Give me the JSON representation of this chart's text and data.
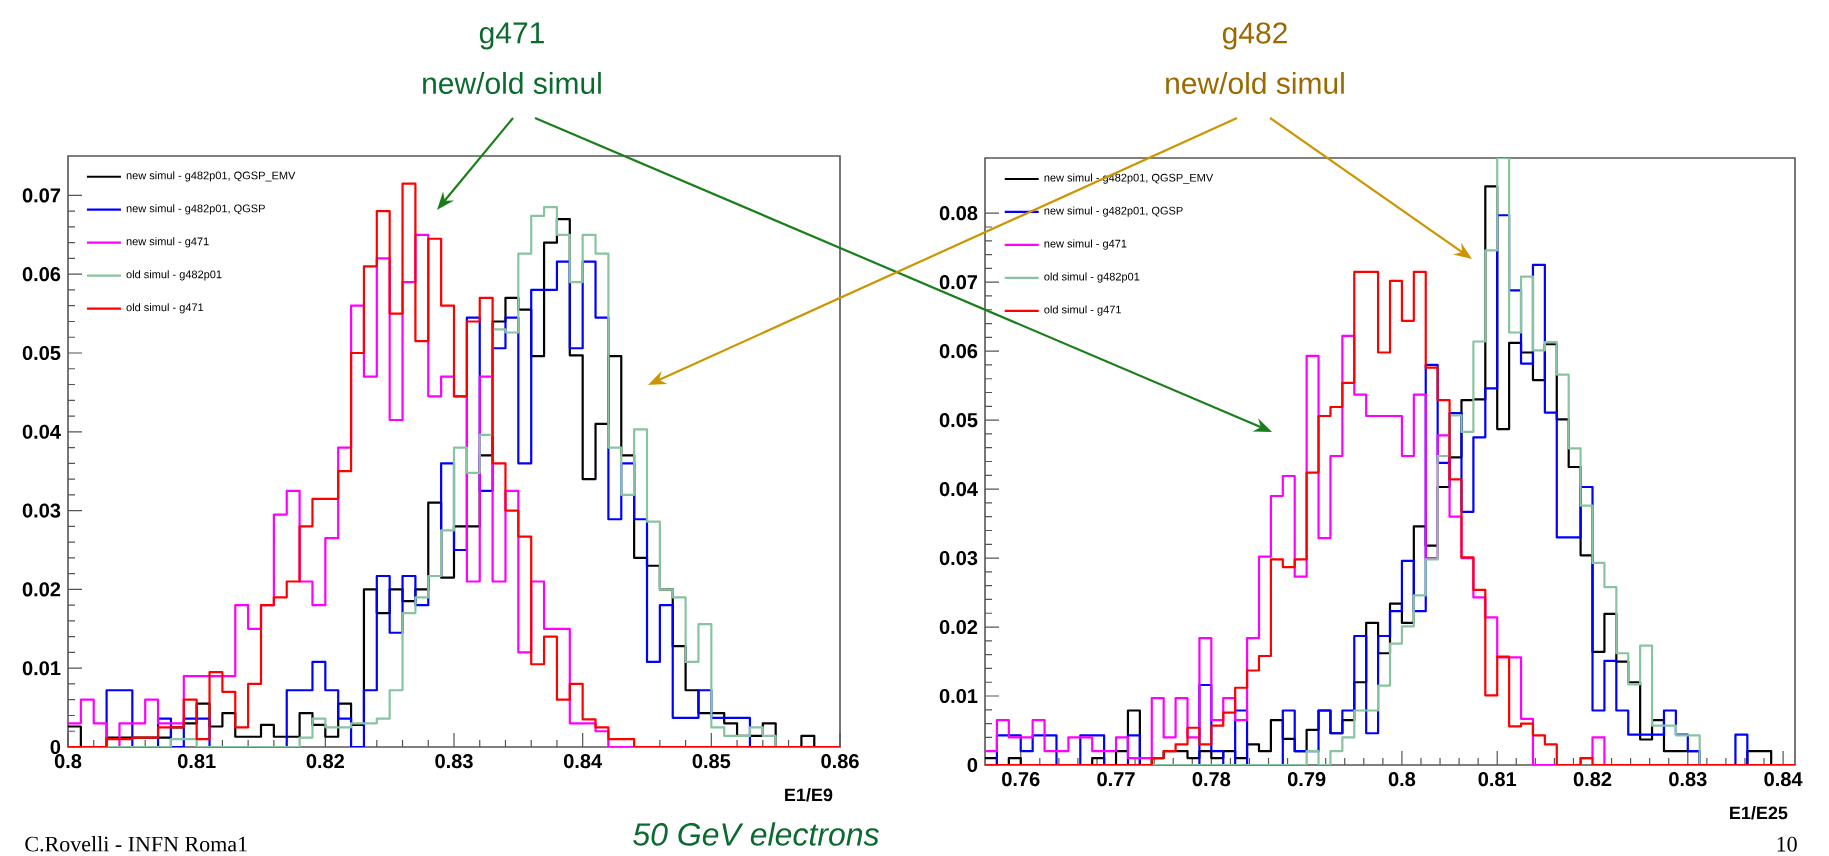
{
  "chart_data": [
    {
      "type": "histogram",
      "xlabel": "E1/E9",
      "legend": "top left",
      "xlim": [
        0.8,
        0.86
      ],
      "ylim": [
        0,
        0.075
      ],
      "xticks": [
        0.8,
        0.81,
        0.82,
        0.83,
        0.84,
        0.85,
        0.86
      ],
      "yticks": [
        0,
        0.01,
        0.02,
        0.03,
        0.04,
        0.05,
        0.06,
        0.07
      ],
      "bins": [
        0.8,
        0.801,
        0.802,
        0.803,
        0.804,
        0.805,
        0.806,
        0.807,
        0.808,
        0.809,
        0.81,
        0.811,
        0.812,
        0.813,
        0.814,
        0.815,
        0.816,
        0.817,
        0.818,
        0.819,
        0.82,
        0.821,
        0.822,
        0.823,
        0.824,
        0.825,
        0.826,
        0.827,
        0.828,
        0.829,
        0.83,
        0.831,
        0.832,
        0.833,
        0.834,
        0.835,
        0.836,
        0.837,
        0.838,
        0.839,
        0.84,
        0.841,
        0.842,
        0.843,
        0.844,
        0.845,
        0.846,
        0.847,
        0.848,
        0.849,
        0.85,
        0.851,
        0.852,
        0.853,
        0.854,
        0.855,
        0.856,
        0.857,
        0.858,
        0.859,
        0.86
      ],
      "series": [
        {
          "name": "new simul - g482p01, QGSP_EMV",
          "color": "#000000",
          "values": [
            0.0026,
            0,
            0,
            0.0012,
            0.0012,
            0.0012,
            0.0012,
            0.0012,
            0.0025,
            0.003,
            0.0055,
            0.0026,
            0.0043,
            0.0013,
            0.0013,
            0.0028,
            0.0013,
            0.0013,
            0.0043,
            0.0028,
            0.0013,
            0.0055,
            0.0028,
            0.02,
            0.017,
            0.02,
            0.0185,
            0.02,
            0.031,
            0.0215,
            0.028,
            0.028,
            0.037,
            0.054,
            0.057,
            0.0555,
            0.0496,
            0.064,
            0.067,
            0.0497,
            0.034,
            0.041,
            0.0496,
            0.037,
            0.024,
            0.023,
            0.02,
            0.0128,
            0.0072,
            0.0043,
            0.0043,
            0.003,
            0.0014,
            0.0014,
            0.003,
            0,
            0,
            0.0014,
            0,
            0
          ]
        },
        {
          "name": "new simul - g482p01, QGSP",
          "color": "#0000ff",
          "values": [
            0,
            0,
            0,
            0.0072,
            0.0072,
            0,
            0,
            0.0036,
            0,
            0.0036,
            0.0036,
            0,
            0,
            0,
            0,
            0,
            0,
            0.0072,
            0.0072,
            0.0108,
            0.0072,
            0.0036,
            0,
            0.0072,
            0.0217,
            0.0145,
            0.0217,
            0.018,
            0.0217,
            0.036,
            0.025,
            0.0545,
            0.0325,
            0.0506,
            0.0545,
            0.036,
            0.058,
            0.058,
            0.0616,
            0.0506,
            0.0616,
            0.0545,
            0.0289,
            0.036,
            0.0289,
            0.0108,
            0.018,
            0.0037,
            0.0037,
            0.0072,
            0.0037,
            0.0037,
            0.0037,
            0,
            0,
            0,
            0,
            0,
            0,
            0
          ]
        },
        {
          "name": "new simul - g471",
          "color": "#ff00ff",
          "values": [
            0.003,
            0.006,
            0.003,
            0,
            0.003,
            0.003,
            0.006,
            0.003,
            0.003,
            0.009,
            0.009,
            0.009,
            0.009,
            0.018,
            0.015,
            0.018,
            0.0295,
            0.0325,
            0.021,
            0.018,
            0.0265,
            0.038,
            0.056,
            0.047,
            0.062,
            0.0415,
            0.059,
            0.065,
            0.0445,
            0.047,
            0.0445,
            0.021,
            0.047,
            0.021,
            0.0325,
            0.012,
            0.021,
            0.015,
            0.015,
            0.003,
            0.003,
            0.002,
            0,
            0,
            0,
            0,
            0,
            0,
            0,
            0,
            0,
            0,
            0,
            0,
            0,
            0,
            0,
            0,
            0,
            0
          ]
        },
        {
          "name": "old simul - g482p01",
          "color": "#88c4a0",
          "values": [
            0,
            0,
            0,
            0,
            0,
            0,
            0,
            0,
            0.001,
            0.001,
            0,
            0,
            0,
            0,
            0,
            0,
            0,
            0,
            0.0012,
            0.0036,
            0.0025,
            0.0025,
            0.003,
            0.003,
            0.0036,
            0.0072,
            0.017,
            0.019,
            0.0217,
            0.0275,
            0.038,
            0.0348,
            0.0396,
            0.053,
            0.0526,
            0.0626,
            0.0674,
            0.0685,
            0.065,
            0.059,
            0.065,
            0.0626,
            0.038,
            0.032,
            0.0403,
            0.0286,
            0.02,
            0.019,
            0.0108,
            0.0156,
            0.0025,
            0.0014,
            0.0014,
            0.0025,
            0.0014,
            0,
            0,
            0,
            0,
            0
          ]
        },
        {
          "name": "old simul - g471",
          "color": "#ff0000",
          "values": [
            0,
            0,
            0,
            0.001,
            0.001,
            0.0012,
            0.0012,
            0.0025,
            0.0025,
            0.006,
            0.001,
            0.0095,
            0.007,
            0.0025,
            0.008,
            0.018,
            0.019,
            0.021,
            0.028,
            0.0315,
            0.0315,
            0.035,
            0.05,
            0.061,
            0.068,
            0.055,
            0.0715,
            0.0515,
            0.0645,
            0.056,
            0.0445,
            0.054,
            0.057,
            0.036,
            0.03,
            0.0267,
            0.0105,
            0.014,
            0.006,
            0.008,
            0.0035,
            0.0025,
            0.001,
            0.001,
            0,
            0,
            0,
            0,
            0,
            0,
            0,
            0,
            0,
            0,
            0,
            0,
            0,
            0,
            0,
            0
          ]
        }
      ],
      "annotations": [
        "g471",
        "new/old simul",
        "C.Rovelli - INFN Roma1"
      ]
    },
    {
      "type": "histogram",
      "xlabel": "E1/E25",
      "legend": "top left",
      "xlim": [
        0.75625,
        0.84125
      ],
      "ylim": [
        0,
        0.088
      ],
      "xticks": [
        0.76,
        0.77,
        0.78,
        0.79,
        0.8,
        0.81,
        0.82,
        0.83,
        0.84
      ],
      "yticks": [
        0,
        0.01,
        0.02,
        0.03,
        0.04,
        0.05,
        0.06,
        0.07,
        0.08
      ],
      "bins": [
        0.75625,
        0.7575,
        0.75875,
        0.76,
        0.76125,
        0.7625,
        0.76375,
        0.765,
        0.76625,
        0.7675,
        0.76875,
        0.77,
        0.77125,
        0.7725,
        0.77375,
        0.775,
        0.77625,
        0.7775,
        0.77875,
        0.78,
        0.78125,
        0.7825,
        0.78375,
        0.785,
        0.78625,
        0.7875,
        0.78875,
        0.79,
        0.79125,
        0.7925,
        0.79375,
        0.795,
        0.79625,
        0.7975,
        0.79875,
        0.8,
        0.80125,
        0.8025,
        0.80375,
        0.805,
        0.80625,
        0.8075,
        0.80875,
        0.81,
        0.81125,
        0.8125,
        0.81375,
        0.815,
        0.81625,
        0.8175,
        0.81875,
        0.82,
        0.82125,
        0.8225,
        0.82375,
        0.825,
        0.82625,
        0.8275,
        0.82875,
        0.83,
        0.83125,
        0.8325,
        0.83375,
        0.835,
        0.83625,
        0.8375,
        0.83875,
        0.84,
        0.84125
      ],
      "series": [
        {
          "name": "new simul - g482p01, QGSP_EMV",
          "color": "#000000",
          "values": [
            0.001,
            0,
            0.001,
            0,
            0,
            0,
            0,
            0,
            0,
            0.001,
            0,
            0.002,
            0.0079,
            0,
            0.001,
            0.002,
            0.002,
            0.001,
            0.002,
            0.001,
            0.002,
            0.001,
            0.003,
            0.002,
            0.0065,
            0.0038,
            0.002,
            0.0051,
            0.0079,
            0.0046,
            0.0065,
            0.012,
            0.0206,
            0.0162,
            0.0234,
            0.0206,
            0.0346,
            0.0318,
            0.0403,
            0.0446,
            0.0529,
            0.053,
            0.0839,
            0.0487,
            0.0612,
            0.0598,
            0.0558,
            0.061,
            0.0501,
            0.0432,
            0.0304,
            0.0164,
            0.0219,
            0.015,
            0.012,
            0.0037,
            0.0065,
            0.002,
            0.002,
            0.002,
            0,
            0,
            0,
            0,
            0.002,
            0.002,
            0,
            0
          ]
        },
        {
          "name": "new simul - g482p01, QGSP",
          "color": "#0000ff",
          "values": [
            0,
            0.0043,
            0.0043,
            0.002,
            0.0043,
            0.0043,
            0,
            0,
            0.0043,
            0.0043,
            0,
            0,
            0.0043,
            0,
            0,
            0,
            0,
            0,
            0.0116,
            0.002,
            0,
            0.0079,
            0,
            0,
            0,
            0.0079,
            0.002,
            0.002,
            0.0079,
            0.0046,
            0.0079,
            0.0187,
            0.0046,
            0.0187,
            0.0223,
            0.0296,
            0.0223,
            0.058,
            0.0438,
            0.051,
            0.0367,
            0.0475,
            0.0546,
            0.0797,
            0.0688,
            0.0582,
            0.0725,
            0.0511,
            0.033,
            0.033,
            0.0403,
            0.0079,
            0.0151,
            0.0079,
            0.0044,
            0.0044,
            0.0044,
            0.0079,
            0.0044,
            0.002,
            0,
            0,
            0,
            0.0044,
            0,
            0,
            0,
            0
          ]
        },
        {
          "name": "new simul - g471",
          "color": "#ff00ff",
          "values": [
            0.002,
            0.0065,
            0.004,
            0.004,
            0.0065,
            0.002,
            0.002,
            0.004,
            0.004,
            0.002,
            0.002,
            0.004,
            0.001,
            0.001,
            0.0097,
            0.004,
            0.0097,
            0.004,
            0.0184,
            0.0065,
            0.0097,
            0.0065,
            0.0184,
            0.0302,
            0.039,
            0.0419,
            0.0273,
            0.0593,
            0.0329,
            0.0448,
            0.0622,
            0.0537,
            0.0506,
            0.0506,
            0.0506,
            0.0448,
            0.0537,
            0.03,
            0.0478,
            0.036,
            0.03,
            0.0243,
            0.0214,
            0.0156,
            0.0156,
            0.0067,
            0,
            0,
            0,
            0,
            0.001,
            0.004,
            0,
            0,
            0,
            0,
            0,
            0,
            0,
            0,
            0,
            0,
            0,
            0,
            0,
            0,
            0,
            0
          ]
        },
        {
          "name": "old simul - g482p01",
          "color": "#88c4a0",
          "values": [
            0,
            0,
            0,
            0,
            0,
            0,
            0,
            0,
            0,
            0,
            0,
            0,
            0,
            0,
            0,
            0,
            0,
            0,
            0,
            0,
            0,
            0,
            0,
            0,
            0,
            0,
            0,
            0.002,
            0,
            0.002,
            0.004,
            0.0079,
            0.0079,
            0.0115,
            0.0176,
            0.0201,
            0.0246,
            0.0298,
            0.0448,
            0.0507,
            0.0483,
            0.0614,
            0.0746,
            0.088,
            0.0627,
            0.0708,
            0.0601,
            0.0613,
            0.0566,
            0.0459,
            0.0376,
            0.0293,
            0.0258,
            0.0162,
            0.0117,
            0.0173,
            0.0057,
            0.0057,
            0.0043,
            0.0043,
            0,
            0,
            0,
            0,
            0,
            0,
            0,
            0
          ]
        },
        {
          "name": "old simul - g471",
          "color": "#ff0000",
          "values": [
            0,
            0,
            0,
            0,
            0,
            0,
            0,
            0,
            0,
            0,
            0,
            0,
            0,
            0,
            0.001,
            0.002,
            0.003,
            0.0054,
            0.003,
            0.0057,
            0.0076,
            0.0112,
            0.0137,
            0.0158,
            0.0298,
            0.0287,
            0.0298,
            0.0424,
            0.0506,
            0.0519,
            0.0554,
            0.0715,
            0.0715,
            0.0598,
            0.0702,
            0.0644,
            0.0715,
            0.0576,
            0.0529,
            0.0414,
            0.0301,
            0.0254,
            0.0101,
            0.0157,
            0.0056,
            0.006,
            0.0043,
            0.003,
            0,
            0,
            0.001,
            0,
            0,
            0,
            0,
            0,
            0,
            0,
            0,
            0,
            0,
            0,
            0,
            0,
            0,
            0,
            0,
            0
          ]
        }
      ],
      "annotations": [
        "g482",
        "new/old simul",
        "50 GeV electrons",
        "10"
      ]
    }
  ]
}
